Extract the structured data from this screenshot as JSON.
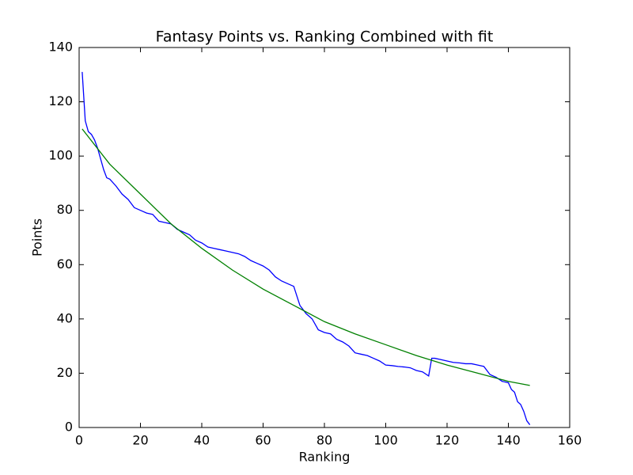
{
  "chart_data": {
    "type": "line",
    "title": "Fantasy Points vs. Ranking Combined with fit",
    "x_label": "Ranking",
    "y_label": "Points",
    "xlim": [
      0,
      160
    ],
    "xticks": [
      0,
      20,
      40,
      60,
      80,
      100,
      120,
      140,
      160
    ],
    "ylim": [
      0,
      140
    ],
    "yticks": [
      0,
      20,
      40,
      60,
      80,
      100,
      120,
      140
    ],
    "series": [
      {
        "color": "#0000ff",
        "x": [
          1,
          2,
          3,
          4,
          5,
          6,
          7,
          8,
          9,
          10,
          12,
          14,
          16,
          18,
          20,
          22,
          24,
          26,
          28,
          30,
          32,
          34,
          36,
          38,
          40,
          42,
          44,
          46,
          48,
          50,
          52,
          54,
          56,
          58,
          60,
          62,
          64,
          66,
          68,
          70,
          72,
          74,
          76,
          78,
          80,
          82,
          84,
          86,
          88,
          90,
          92,
          94,
          96,
          98,
          100,
          102,
          104,
          106,
          108,
          110,
          112,
          114,
          115,
          116,
          118,
          120,
          122,
          124,
          126,
          128,
          130,
          132,
          134,
          136,
          138,
          140,
          141,
          142,
          143,
          144,
          145,
          146,
          147
        ],
        "values": [
          131,
          113,
          109,
          108,
          106,
          103,
          99,
          95,
          92,
          91.5,
          89,
          86,
          84,
          81,
          80,
          79,
          78.5,
          76,
          75.5,
          75,
          73,
          72,
          71,
          69,
          68,
          66.5,
          66,
          65.5,
          65,
          64.5,
          64,
          63,
          61.5,
          60.5,
          59.5,
          58,
          55.5,
          54,
          53,
          52,
          45,
          42,
          40,
          36,
          35,
          34.5,
          32.5,
          31.5,
          30,
          27.5,
          27,
          26.5,
          25.5,
          24.5,
          23,
          22.8,
          22.5,
          22.3,
          22,
          21,
          20.5,
          19,
          25.5,
          25.5,
          25,
          24.5,
          24,
          23.8,
          23.5,
          23.5,
          23,
          22.5,
          19.5,
          18.5,
          17,
          16.5,
          14,
          13,
          9.5,
          8.5,
          6,
          2.5,
          1
        ]
      },
      {
        "color": "#008000",
        "x": [
          1,
          10,
          20,
          30,
          40,
          50,
          60,
          70,
          80,
          90,
          100,
          110,
          120,
          130,
          140,
          147
        ],
        "values": [
          110,
          97,
          86,
          75,
          66,
          58,
          51,
          45,
          39,
          34.5,
          30.5,
          26.5,
          23,
          20,
          17,
          15.5
        ]
      }
    ]
  }
}
